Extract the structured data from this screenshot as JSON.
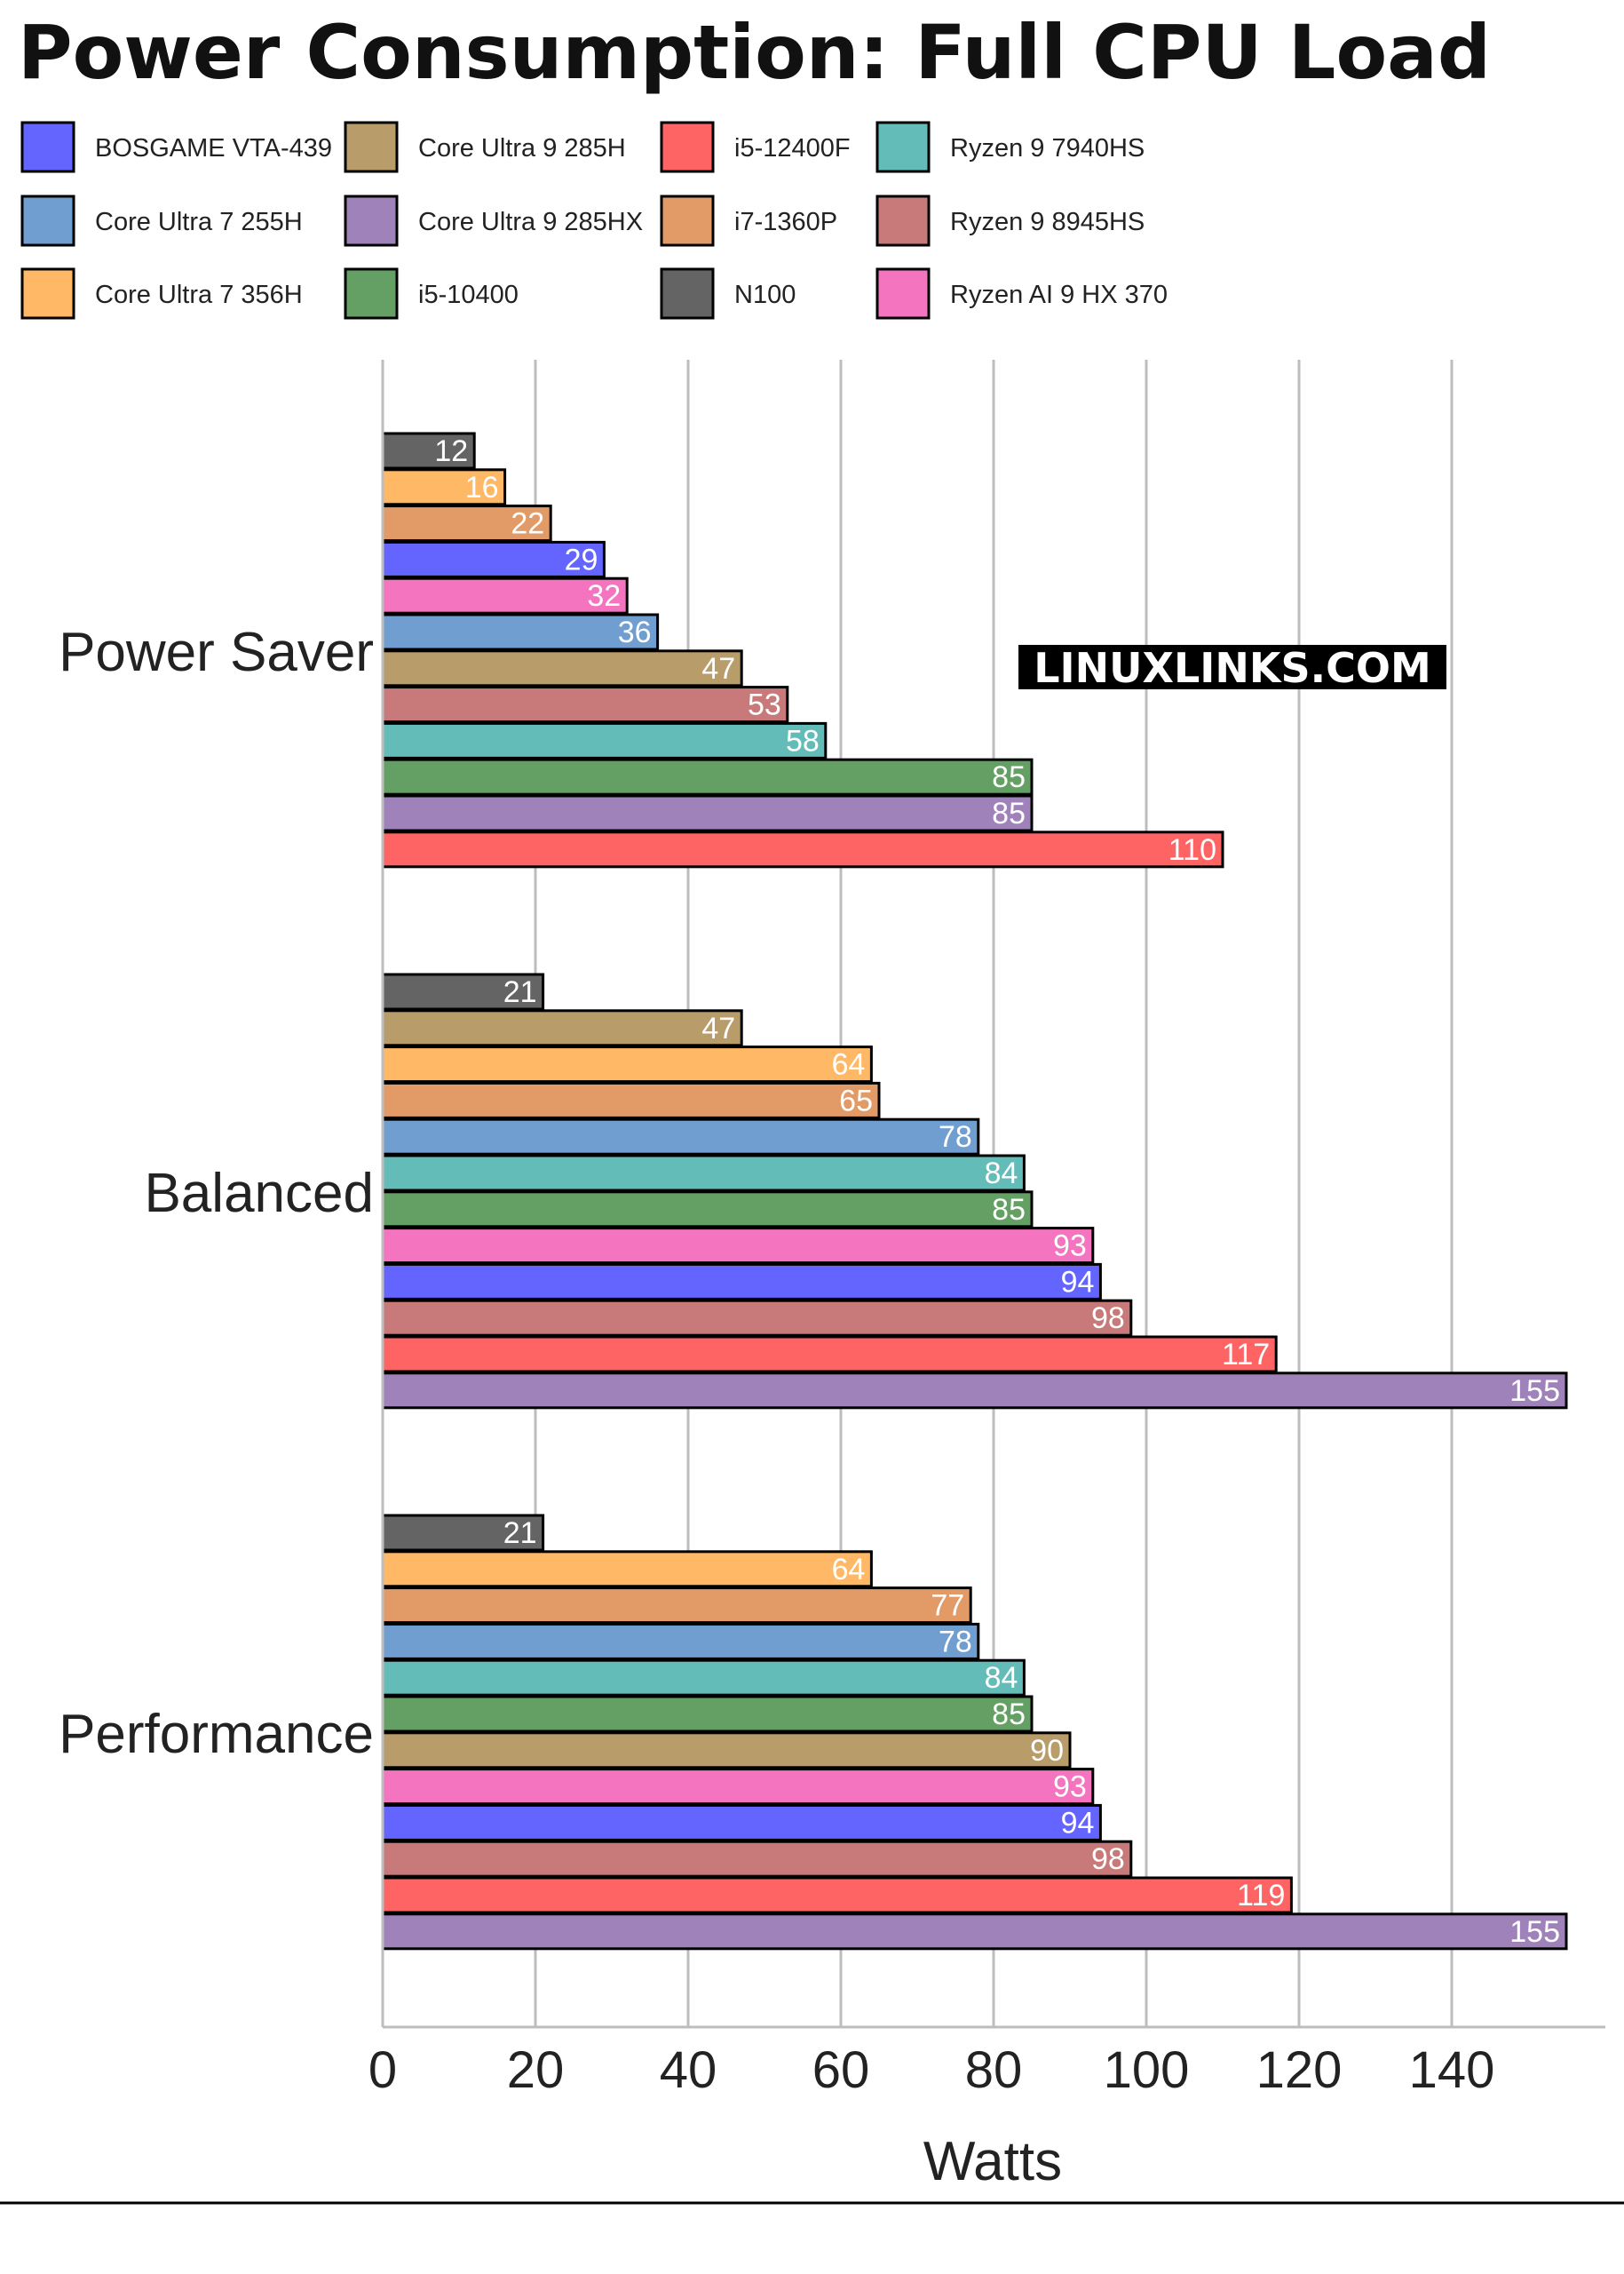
{
  "chart_data": {
    "type": "bar",
    "orientation": "horizontal",
    "title": "Power Consumption: Full CPU Load",
    "xlabel": "Watts",
    "ylabel": "",
    "xlim": [
      0,
      160
    ],
    "xticks": [
      0,
      20,
      40,
      60,
      80,
      100,
      120,
      140
    ],
    "grid": "vertical",
    "legend_position": "top",
    "watermark": "LINUXLINKS.COM",
    "legend": [
      {
        "name": "BOSGAME VTA-439",
        "color": "#6464ff"
      },
      {
        "name": "Core Ultra 9 285H",
        "color": "#b89c6a"
      },
      {
        "name": "i5-12400F",
        "color": "#ff6464"
      },
      {
        "name": "Ryzen 9 7940HS",
        "color": "#64bcb8"
      },
      {
        "name": "Core Ultra 7 255H",
        "color": "#709ed0"
      },
      {
        "name": "Core Ultra 9 285HX",
        "color": "#a082ba"
      },
      {
        "name": "i7-1360P",
        "color": "#e29a66"
      },
      {
        "name": "Ryzen 9 8945HS",
        "color": "#c87a7a"
      },
      {
        "name": "Core Ultra 7 356H",
        "color": "#ffb866"
      },
      {
        "name": "i5-10400",
        "color": "#64a064"
      },
      {
        "name": "N100",
        "color": "#646464"
      },
      {
        "name": "Ryzen AI 9 HX 370",
        "color": "#f474c0"
      }
    ],
    "groups": [
      {
        "name": "Power Saver",
        "bars": [
          {
            "series": "N100",
            "value": 12
          },
          {
            "series": "Core Ultra 7 356H",
            "value": 16
          },
          {
            "series": "i7-1360P",
            "value": 22
          },
          {
            "series": "BOSGAME VTA-439",
            "value": 29
          },
          {
            "series": "Ryzen AI 9 HX 370",
            "value": 32
          },
          {
            "series": "Core Ultra 7 255H",
            "value": 36
          },
          {
            "series": "Core Ultra 9 285H",
            "value": 47
          },
          {
            "series": "Ryzen 9 8945HS",
            "value": 53
          },
          {
            "series": "Ryzen 9 7940HS",
            "value": 58
          },
          {
            "series": "i5-10400",
            "value": 85
          },
          {
            "series": "Core Ultra 9 285HX",
            "value": 85
          },
          {
            "series": "i5-12400F",
            "value": 110
          }
        ]
      },
      {
        "name": "Balanced",
        "bars": [
          {
            "series": "N100",
            "value": 21
          },
          {
            "series": "Core Ultra 9 285H",
            "value": 47
          },
          {
            "series": "Core Ultra 7 356H",
            "value": 64
          },
          {
            "series": "i7-1360P",
            "value": 65
          },
          {
            "series": "Core Ultra 7 255H",
            "value": 78
          },
          {
            "series": "Ryzen 9 7940HS",
            "value": 84
          },
          {
            "series": "i5-10400",
            "value": 85
          },
          {
            "series": "Ryzen AI 9 HX 370",
            "value": 93
          },
          {
            "series": "BOSGAME VTA-439",
            "value": 94
          },
          {
            "series": "Ryzen 9 8945HS",
            "value": 98
          },
          {
            "series": "i5-12400F",
            "value": 117
          },
          {
            "series": "Core Ultra 9 285HX",
            "value": 155
          }
        ]
      },
      {
        "name": "Performance",
        "bars": [
          {
            "series": "N100",
            "value": 21
          },
          {
            "series": "Core Ultra 7 356H",
            "value": 64
          },
          {
            "series": "i7-1360P",
            "value": 77
          },
          {
            "series": "Core Ultra 7 255H",
            "value": 78
          },
          {
            "series": "Ryzen 9 7940HS",
            "value": 84
          },
          {
            "series": "i5-10400",
            "value": 85
          },
          {
            "series": "Core Ultra 9 285H",
            "value": 90
          },
          {
            "series": "Ryzen AI 9 HX 370",
            "value": 93
          },
          {
            "series": "BOSGAME VTA-439",
            "value": 94
          },
          {
            "series": "Ryzen 9 8945HS",
            "value": 98
          },
          {
            "series": "i5-12400F",
            "value": 119
          },
          {
            "series": "Core Ultra 9 285HX",
            "value": 155
          }
        ]
      }
    ]
  }
}
